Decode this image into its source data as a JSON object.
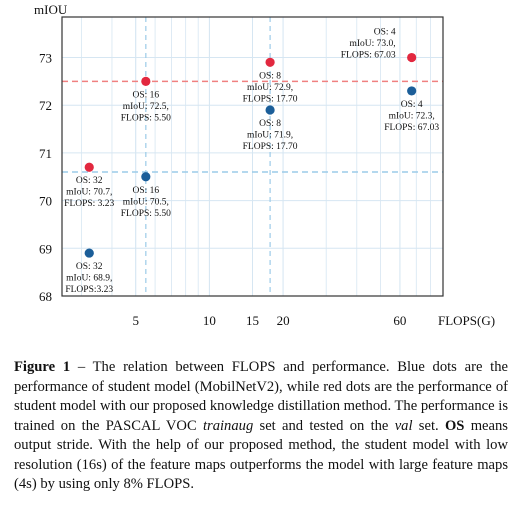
{
  "chart_data": {
    "type": "scatter",
    "x_scale": "log",
    "xlabel": "FLOPS(G)",
    "ylabel": "mIOU",
    "xlim": [
      2.5,
      90
    ],
    "ylim": [
      68,
      73.85
    ],
    "xticks": [
      5,
      10,
      15,
      20,
      60
    ],
    "yticks": [
      68,
      69,
      70,
      71,
      72,
      73
    ],
    "grid": true,
    "colors": {
      "student": "#1b5e99",
      "distilled": "#e2283f",
      "hline": "#f08080",
      "vline": "#9ccbe8",
      "grid": "#d6e6f2"
    },
    "reference_lines": {
      "horizontal_y": [
        72.5,
        70.6
      ],
      "vertical_x": [
        5.5,
        17.7
      ]
    },
    "points": [
      {
        "series": "student",
        "x": 3.23,
        "y": 68.9,
        "label": [
          "OS: 32",
          "mIoU: 68.9,",
          "FLOPS:3.23"
        ]
      },
      {
        "series": "student",
        "x": 5.5,
        "y": 70.5,
        "label": [
          "OS: 16",
          "mIoU: 70.5,",
          "FLOPS: 5.50"
        ]
      },
      {
        "series": "student",
        "x": 17.7,
        "y": 71.9,
        "label": [
          "OS: 8",
          "mIoU: 71.9,",
          "FLOPS: 17.70"
        ]
      },
      {
        "series": "student",
        "x": 67.03,
        "y": 72.3,
        "label": [
          "OS: 4",
          "mIoU: 72.3,",
          "FLOPS: 67.03"
        ]
      },
      {
        "series": "distilled",
        "x": 3.23,
        "y": 70.7,
        "label": [
          "OS: 32",
          "mIoU: 70.7,",
          "FLOPS: 3.23"
        ]
      },
      {
        "series": "distilled",
        "x": 5.5,
        "y": 72.5,
        "label": [
          "OS: 16",
          "mIoU: 72.5,",
          "FLOPS: 5.50"
        ]
      },
      {
        "series": "distilled",
        "x": 17.7,
        "y": 72.9,
        "label": [
          "OS: 8",
          "mIoU: 72.9,",
          "FLOPS: 17.70"
        ]
      },
      {
        "series": "distilled",
        "x": 67.03,
        "y": 73.0,
        "label": [
          "OS: 4",
          "mIoU: 73.0,",
          "FLOPS: 67.03"
        ]
      }
    ]
  },
  "caption": {
    "label": "Figure 1",
    "text_1": " – The relation between FLOPS and performance. Blue dots are the performance of student model (MobilNetV2), while red dots are the performance of student model with our proposed knowledge distillation method. The performance is trained on the PASCAL VOC ",
    "em_1": "trainaug",
    "text_2": " set and tested on the ",
    "em_2": "val",
    "text_3": " set. ",
    "strong_1": "OS",
    "text_4": " means output stride. With the help of our proposed method, the student model with low resolution (16s) of the feature maps outperforms the model with large feature maps (4s) by using only 8% FLOPS."
  }
}
